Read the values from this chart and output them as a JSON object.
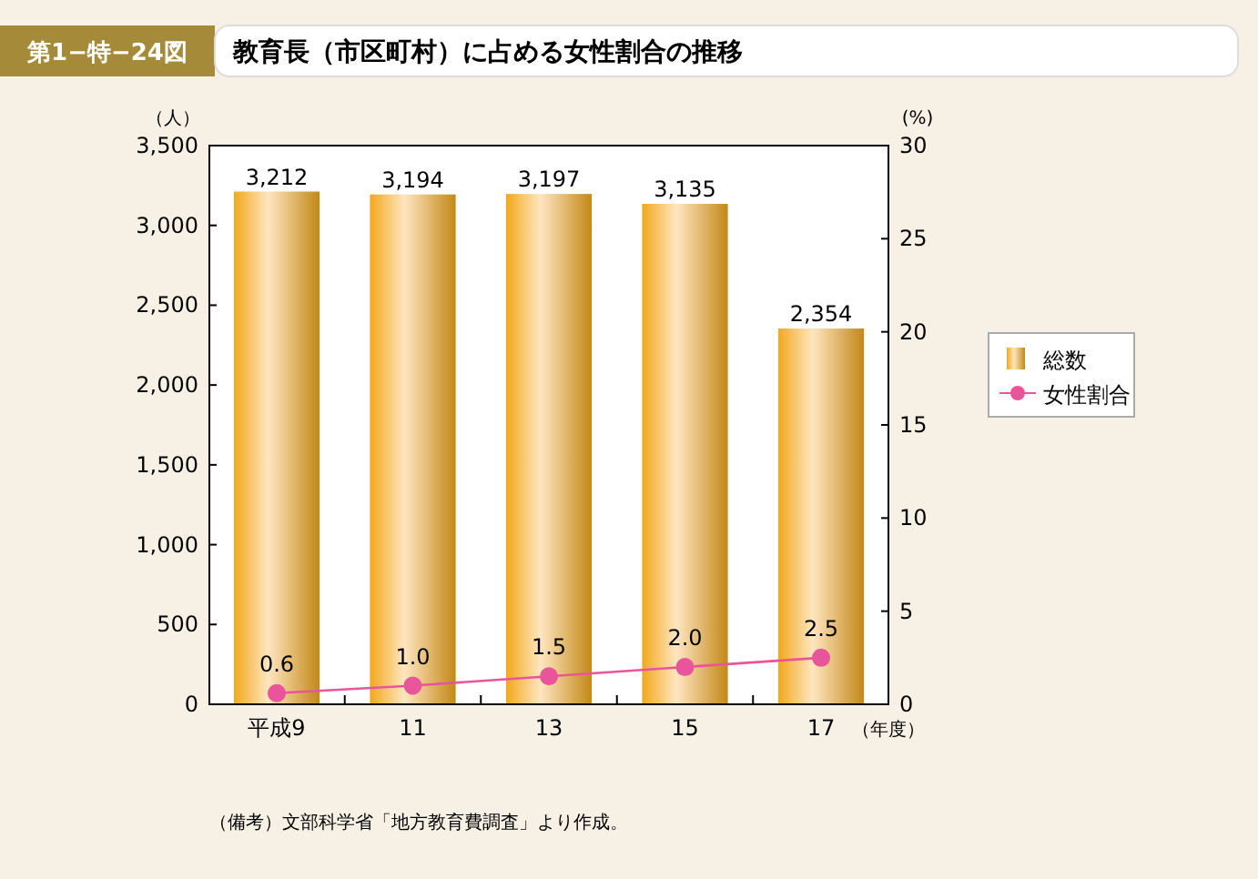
{
  "chart_data": {
    "type": "bar",
    "title": "教育長（市区町村）に占める女性割合の推移",
    "subtitle": "第1−特−24図",
    "categories": [
      "平成9",
      "11",
      "13",
      "15",
      "17"
    ],
    "xlabel": "（年度）",
    "ylabel": "（人）",
    "y2label": "(%)",
    "series": [
      {
        "name": "総数",
        "color": "#f2a81c",
        "values": [
          3212,
          3194,
          3197,
          3135,
          2354
        ],
        "value_labels": [
          "3,212",
          "3,194",
          "3,197",
          "3,135",
          "2,354"
        ]
      },
      {
        "name": "女性割合",
        "type": "line",
        "axis": "y2",
        "color": "#e8559a",
        "marker": "circle",
        "values": [
          0.6,
          1.0,
          1.5,
          2.0,
          2.5
        ],
        "value_labels": [
          "0.6",
          "1.0",
          "1.5",
          "2.0",
          "2.5"
        ]
      }
    ],
    "ylim": [
      0,
      3500
    ],
    "yticks": [
      {
        "value": 0,
        "label": "0"
      },
      {
        "value": 500,
        "label": "500"
      },
      {
        "value": 1000,
        "label": "1,000"
      },
      {
        "value": 1500,
        "label": "1,500"
      },
      {
        "value": 2000,
        "label": "2,000"
      },
      {
        "value": 2500,
        "label": "2,500"
      },
      {
        "value": 3000,
        "label": "3,000"
      },
      {
        "value": 3500,
        "label": "3,500"
      }
    ],
    "y2lim": [
      0,
      30
    ],
    "y2ticks": [
      0,
      5,
      10,
      15,
      20,
      25,
      30
    ],
    "legend": "right",
    "grid": false,
    "annotations": [
      "（備考）文部科学省「地方教育費調査」より作成。"
    ]
  }
}
